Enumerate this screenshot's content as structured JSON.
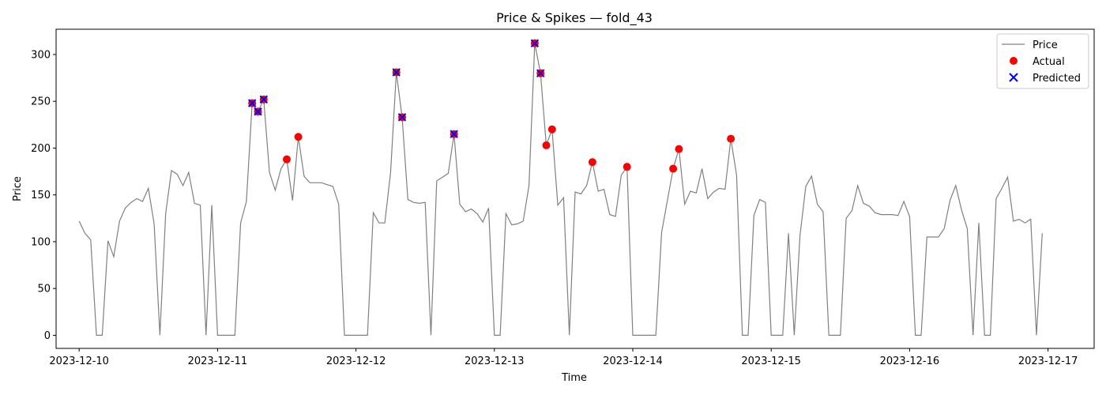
{
  "chart_data": {
    "type": "line",
    "title": "Price & Spikes — fold_43",
    "xlabel": "Time",
    "ylabel": "Price",
    "xlim": [
      "2023-12-09T20:00",
      "2023-12-17T08:00"
    ],
    "ylim": [
      -14,
      327
    ],
    "x_ticks": [
      "2023-12-10",
      "2023-12-11",
      "2023-12-12",
      "2023-12-13",
      "2023-12-14",
      "2023-12-15",
      "2023-12-16",
      "2023-12-17"
    ],
    "y_ticks": [
      0,
      50,
      100,
      150,
      200,
      250,
      300
    ],
    "grid": false,
    "legend": "top-right",
    "colors": {
      "price": "#808080",
      "actual": "#ff0000",
      "predicted": "#0000ff"
    },
    "series": [
      {
        "name": "Price",
        "style": "line",
        "points": [
          [
            "2023-12-10T00:00",
            122
          ],
          [
            "2023-12-10T01:00",
            109
          ],
          [
            "2023-12-10T02:00",
            102
          ],
          [
            "2023-12-10T03:00",
            0
          ],
          [
            "2023-12-10T04:00",
            0
          ],
          [
            "2023-12-10T05:00",
            101
          ],
          [
            "2023-12-10T06:00",
            84
          ],
          [
            "2023-12-10T07:00",
            122
          ],
          [
            "2023-12-10T08:00",
            136
          ],
          [
            "2023-12-10T09:00",
            142
          ],
          [
            "2023-12-10T10:00",
            146
          ],
          [
            "2023-12-10T11:00",
            143
          ],
          [
            "2023-12-10T12:00",
            157
          ],
          [
            "2023-12-10T13:00",
            119
          ],
          [
            "2023-12-10T14:00",
            0
          ],
          [
            "2023-12-10T15:00",
            130
          ],
          [
            "2023-12-10T16:00",
            176
          ],
          [
            "2023-12-10T17:00",
            172
          ],
          [
            "2023-12-10T18:00",
            160
          ],
          [
            "2023-12-10T19:00",
            174
          ],
          [
            "2023-12-10T20:00",
            141
          ],
          [
            "2023-12-10T21:00",
            139
          ],
          [
            "2023-12-10T22:00",
            0
          ],
          [
            "2023-12-10T23:00",
            139
          ],
          [
            "2023-12-11T00:00",
            0
          ],
          [
            "2023-12-11T01:00",
            0
          ],
          [
            "2023-12-11T02:00",
            0
          ],
          [
            "2023-12-11T03:00",
            0
          ],
          [
            "2023-12-11T04:00",
            120
          ],
          [
            "2023-12-11T05:00",
            143
          ],
          [
            "2023-12-11T06:00",
            248
          ],
          [
            "2023-12-11T07:00",
            239
          ],
          [
            "2023-12-11T08:00",
            252
          ],
          [
            "2023-12-11T09:00",
            174
          ],
          [
            "2023-12-11T10:00",
            155
          ],
          [
            "2023-12-11T11:00",
            178
          ],
          [
            "2023-12-11T12:00",
            188
          ],
          [
            "2023-12-11T13:00",
            144
          ],
          [
            "2023-12-11T14:00",
            212
          ],
          [
            "2023-12-11T15:00",
            170
          ],
          [
            "2023-12-11T16:00",
            163
          ],
          [
            "2023-12-11T17:00",
            163
          ],
          [
            "2023-12-11T18:00",
            163
          ],
          [
            "2023-12-11T19:00",
            161
          ],
          [
            "2023-12-11T20:00",
            159
          ],
          [
            "2023-12-11T21:00",
            140
          ],
          [
            "2023-12-11T22:00",
            0
          ],
          [
            "2023-12-11T23:00",
            0
          ],
          [
            "2023-12-12T00:00",
            0
          ],
          [
            "2023-12-12T01:00",
            0
          ],
          [
            "2023-12-12T02:00",
            0
          ],
          [
            "2023-12-12T03:00",
            131
          ],
          [
            "2023-12-12T04:00",
            120
          ],
          [
            "2023-12-12T05:00",
            120
          ],
          [
            "2023-12-12T06:00",
            174
          ],
          [
            "2023-12-12T07:00",
            281
          ],
          [
            "2023-12-12T08:00",
            233
          ],
          [
            "2023-12-12T09:00",
            145
          ],
          [
            "2023-12-12T10:00",
            142
          ],
          [
            "2023-12-12T11:00",
            141
          ],
          [
            "2023-12-12T12:00",
            142
          ],
          [
            "2023-12-12T13:00",
            0
          ],
          [
            "2023-12-12T14:00",
            165
          ],
          [
            "2023-12-12T15:00",
            169
          ],
          [
            "2023-12-12T16:00",
            173
          ],
          [
            "2023-12-12T17:00",
            215
          ],
          [
            "2023-12-12T18:00",
            140
          ],
          [
            "2023-12-12T19:00",
            132
          ],
          [
            "2023-12-12T20:00",
            135
          ],
          [
            "2023-12-12T21:00",
            130
          ],
          [
            "2023-12-12T22:00",
            121
          ],
          [
            "2023-12-12T23:00",
            136
          ],
          [
            "2023-12-13T00:00",
            0
          ],
          [
            "2023-12-13T01:00",
            0
          ],
          [
            "2023-12-13T02:00",
            130
          ],
          [
            "2023-12-13T03:00",
            118
          ],
          [
            "2023-12-13T04:00",
            119
          ],
          [
            "2023-12-13T05:00",
            122
          ],
          [
            "2023-12-13T06:00",
            160
          ],
          [
            "2023-12-13T07:00",
            312
          ],
          [
            "2023-12-13T08:00",
            280
          ],
          [
            "2023-12-13T09:00",
            203
          ],
          [
            "2023-12-13T10:00",
            220
          ],
          [
            "2023-12-13T11:00",
            139
          ],
          [
            "2023-12-13T12:00",
            147
          ],
          [
            "2023-12-13T13:00",
            0
          ],
          [
            "2023-12-13T14:00",
            153
          ],
          [
            "2023-12-13T15:00",
            151
          ],
          [
            "2023-12-13T16:00",
            160
          ],
          [
            "2023-12-13T17:00",
            185
          ],
          [
            "2023-12-13T18:00",
            154
          ],
          [
            "2023-12-13T19:00",
            156
          ],
          [
            "2023-12-13T20:00",
            129
          ],
          [
            "2023-12-13T21:00",
            127
          ],
          [
            "2023-12-13T22:00",
            171
          ],
          [
            "2023-12-13T23:00",
            180
          ],
          [
            "2023-12-14T00:00",
            0
          ],
          [
            "2023-12-14T01:00",
            0
          ],
          [
            "2023-12-14T02:00",
            0
          ],
          [
            "2023-12-14T03:00",
            0
          ],
          [
            "2023-12-14T04:00",
            0
          ],
          [
            "2023-12-14T05:00",
            110
          ],
          [
            "2023-12-14T06:00",
            144
          ],
          [
            "2023-12-14T07:00",
            178
          ],
          [
            "2023-12-14T08:00",
            199
          ],
          [
            "2023-12-14T09:00",
            140
          ],
          [
            "2023-12-14T10:00",
            154
          ],
          [
            "2023-12-14T11:00",
            152
          ],
          [
            "2023-12-14T12:00",
            178
          ],
          [
            "2023-12-14T13:00",
            146
          ],
          [
            "2023-12-14T14:00",
            153
          ],
          [
            "2023-12-14T15:00",
            157
          ],
          [
            "2023-12-14T16:00",
            156
          ],
          [
            "2023-12-14T17:00",
            210
          ],
          [
            "2023-12-14T18:00",
            171
          ],
          [
            "2023-12-14T19:00",
            0
          ],
          [
            "2023-12-14T20:00",
            0
          ],
          [
            "2023-12-14T21:00",
            128
          ],
          [
            "2023-12-14T22:00",
            145
          ],
          [
            "2023-12-14T23:00",
            142
          ],
          [
            "2023-12-15T00:00",
            0
          ],
          [
            "2023-12-15T01:00",
            0
          ],
          [
            "2023-12-15T02:00",
            0
          ],
          [
            "2023-12-15T03:00",
            109
          ],
          [
            "2023-12-15T04:00",
            0
          ],
          [
            "2023-12-15T05:00",
            107
          ],
          [
            "2023-12-15T06:00",
            159
          ],
          [
            "2023-12-15T07:00",
            170
          ],
          [
            "2023-12-15T08:00",
            140
          ],
          [
            "2023-12-15T09:00",
            132
          ],
          [
            "2023-12-15T10:00",
            0
          ],
          [
            "2023-12-15T11:00",
            0
          ],
          [
            "2023-12-15T12:00",
            0
          ],
          [
            "2023-12-15T13:00",
            125
          ],
          [
            "2023-12-15T14:00",
            133
          ],
          [
            "2023-12-15T15:00",
            160
          ],
          [
            "2023-12-15T16:00",
            141
          ],
          [
            "2023-12-15T17:00",
            138
          ],
          [
            "2023-12-15T18:00",
            131
          ],
          [
            "2023-12-15T19:00",
            129
          ],
          [
            "2023-12-15T20:00",
            129
          ],
          [
            "2023-12-15T21:00",
            129
          ],
          [
            "2023-12-15T22:00",
            128
          ],
          [
            "2023-12-15T23:00",
            143
          ],
          [
            "2023-12-16T00:00",
            127
          ],
          [
            "2023-12-16T01:00",
            0
          ],
          [
            "2023-12-16T02:00",
            0
          ],
          [
            "2023-12-16T03:00",
            105
          ],
          [
            "2023-12-16T04:00",
            105
          ],
          [
            "2023-12-16T05:00",
            105
          ],
          [
            "2023-12-16T06:00",
            114
          ],
          [
            "2023-12-16T07:00",
            144
          ],
          [
            "2023-12-16T08:00",
            160
          ],
          [
            "2023-12-16T09:00",
            134
          ],
          [
            "2023-12-16T10:00",
            114
          ],
          [
            "2023-12-16T11:00",
            0
          ],
          [
            "2023-12-16T12:00",
            120
          ],
          [
            "2023-12-16T13:00",
            0
          ],
          [
            "2023-12-16T14:00",
            0
          ],
          [
            "2023-12-16T15:00",
            146
          ],
          [
            "2023-12-16T16:00",
            157
          ],
          [
            "2023-12-16T17:00",
            169
          ],
          [
            "2023-12-16T18:00",
            122
          ],
          [
            "2023-12-16T19:00",
            124
          ],
          [
            "2023-12-16T20:00",
            120
          ],
          [
            "2023-12-16T21:00",
            124
          ],
          [
            "2023-12-16T22:00",
            0
          ],
          [
            "2023-12-16T23:00",
            109
          ]
        ]
      },
      {
        "name": "Actual",
        "style": "dot",
        "points": [
          [
            "2023-12-11T06:00",
            248
          ],
          [
            "2023-12-11T07:00",
            239
          ],
          [
            "2023-12-11T08:00",
            252
          ],
          [
            "2023-12-11T12:00",
            188
          ],
          [
            "2023-12-11T14:00",
            212
          ],
          [
            "2023-12-12T07:00",
            281
          ],
          [
            "2023-12-12T08:00",
            233
          ],
          [
            "2023-12-12T17:00",
            215
          ],
          [
            "2023-12-13T07:00",
            312
          ],
          [
            "2023-12-13T08:00",
            280
          ],
          [
            "2023-12-13T09:00",
            203
          ],
          [
            "2023-12-13T10:00",
            220
          ],
          [
            "2023-12-13T17:00",
            185
          ],
          [
            "2023-12-13T23:00",
            180
          ],
          [
            "2023-12-14T07:00",
            178
          ],
          [
            "2023-12-14T08:00",
            199
          ],
          [
            "2023-12-14T17:00",
            210
          ]
        ]
      },
      {
        "name": "Predicted",
        "style": "x",
        "points": [
          [
            "2023-12-11T06:00",
            248
          ],
          [
            "2023-12-11T07:00",
            239
          ],
          [
            "2023-12-11T08:00",
            252
          ],
          [
            "2023-12-12T07:00",
            281
          ],
          [
            "2023-12-12T08:00",
            233
          ],
          [
            "2023-12-12T17:00",
            215
          ],
          [
            "2023-12-13T07:00",
            312
          ],
          [
            "2023-12-13T08:00",
            280
          ]
        ]
      }
    ]
  }
}
